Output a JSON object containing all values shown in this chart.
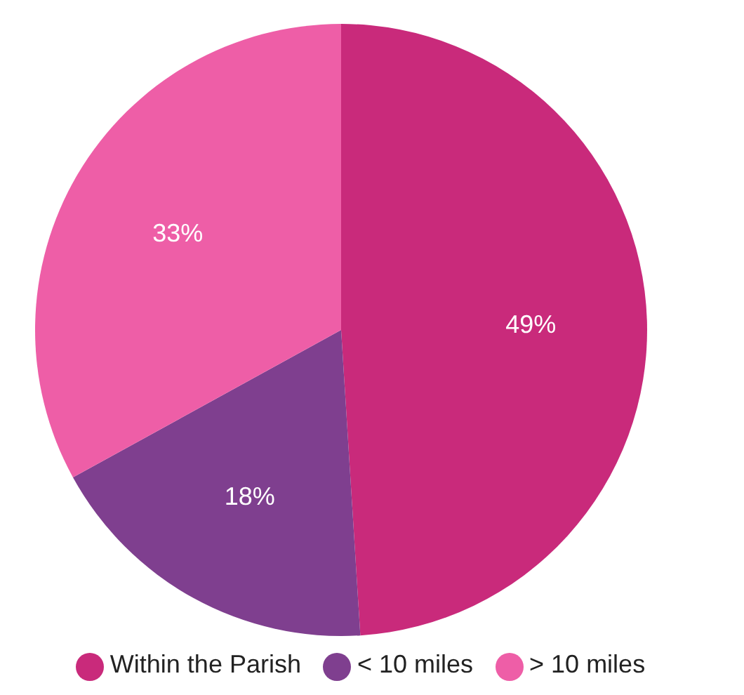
{
  "chart_data": {
    "type": "pie",
    "categories": [
      "Within the Parish",
      "< 10 miles",
      "> 10 miles"
    ],
    "values": [
      49,
      18,
      33
    ],
    "value_labels": [
      "49%",
      "18%",
      "33%"
    ],
    "colors": [
      "#c92a7b",
      "#7f3f8f",
      "#ee5ea7"
    ],
    "legend": "bottom"
  }
}
